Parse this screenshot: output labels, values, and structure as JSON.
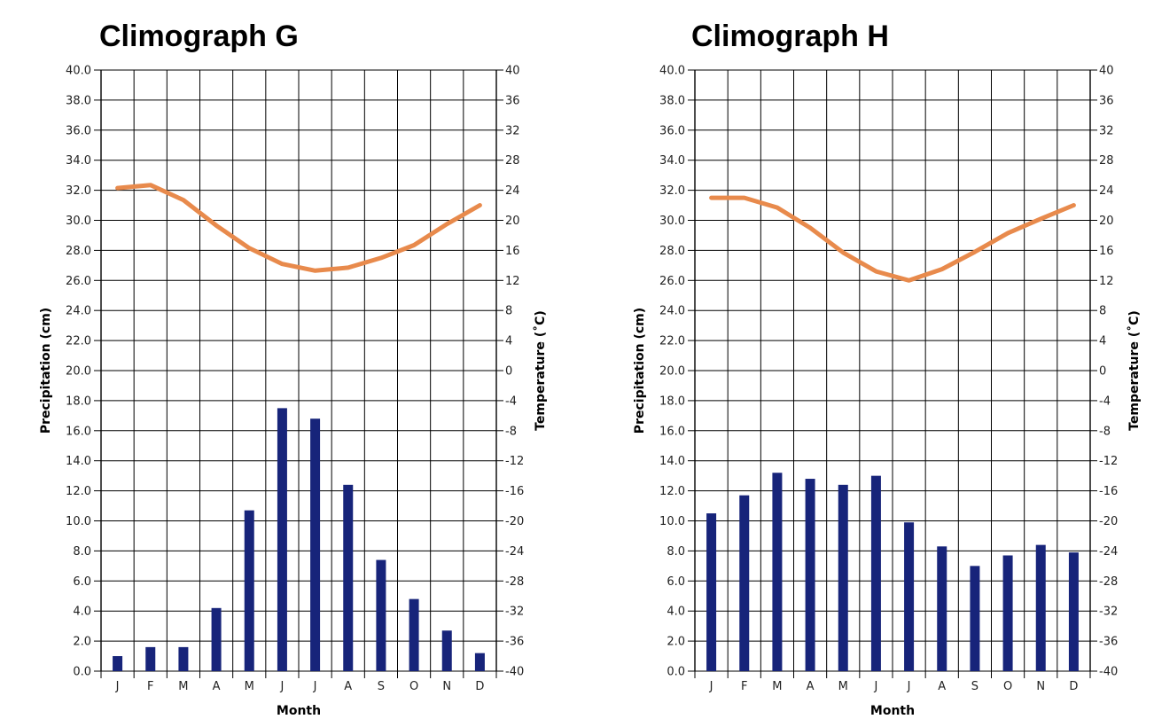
{
  "chart_data": [
    {
      "type": "bar+line",
      "title": "Climograph G",
      "xlabel": "Month",
      "ylabel_left": "Precipitation (cm)",
      "ylabel_right": "Temperature (˚C)",
      "categories": [
        "J",
        "F",
        "M",
        "A",
        "M",
        "J",
        "J",
        "A",
        "S",
        "O",
        "N",
        "D"
      ],
      "ylim_left": [
        0,
        40
      ],
      "ylim_right": [
        -40,
        40
      ],
      "left_ticks": [
        "0.0",
        "2.0",
        "4.0",
        "6.0",
        "8.0",
        "10.0",
        "12.0",
        "14.0",
        "16.0",
        "18.0",
        "20.0",
        "22.0",
        "24.0",
        "26.0",
        "28.0",
        "30.0",
        "32.0",
        "34.0",
        "36.0",
        "38.0",
        "40.0"
      ],
      "right_ticks": [
        "-40",
        "-36",
        "-32",
        "-28",
        "-24",
        "-20",
        "-16",
        "-12",
        "-8",
        "-4",
        "0",
        "4",
        "8",
        "12",
        "16",
        "20",
        "24",
        "28",
        "32",
        "36",
        "40"
      ],
      "precipitation": [
        1.0,
        1.6,
        1.6,
        4.2,
        10.7,
        17.5,
        16.8,
        12.4,
        7.4,
        4.8,
        2.7,
        1.2
      ],
      "temperature": [
        24.3,
        24.7,
        22.7,
        19.3,
        16.3,
        14.2,
        13.3,
        13.7,
        15.0,
        16.7,
        19.5,
        22.0
      ],
      "grid": true,
      "colors": {
        "bar": "#17247a",
        "line": "#e88a4c",
        "grid": "#000000"
      }
    },
    {
      "type": "bar+line",
      "title": "Climograph H",
      "xlabel": "Month",
      "ylabel_left": "Precipitation (cm)",
      "ylabel_right": "Temperature (˚C)",
      "categories": [
        "J",
        "F",
        "M",
        "A",
        "M",
        "J",
        "J",
        "A",
        "S",
        "O",
        "N",
        "D"
      ],
      "ylim_left": [
        0,
        40
      ],
      "ylim_right": [
        -40,
        40
      ],
      "left_ticks": [
        "0.0",
        "2.0",
        "4.0",
        "6.0",
        "8.0",
        "10.0",
        "12.0",
        "14.0",
        "16.0",
        "18.0",
        "20.0",
        "22.0",
        "24.0",
        "26.0",
        "28.0",
        "30.0",
        "32.0",
        "34.0",
        "36.0",
        "38.0",
        "40.0"
      ],
      "right_ticks": [
        "-40",
        "-36",
        "-32",
        "-28",
        "-24",
        "-20",
        "-16",
        "-12",
        "-8",
        "-4",
        "0",
        "4",
        "8",
        "12",
        "16",
        "20",
        "24",
        "28",
        "32",
        "36",
        "40"
      ],
      "precipitation": [
        10.5,
        11.7,
        13.2,
        12.8,
        12.4,
        13.0,
        9.9,
        8.3,
        7.0,
        7.7,
        8.4,
        7.9
      ],
      "temperature": [
        23.0,
        23.0,
        21.7,
        19.0,
        15.7,
        13.2,
        12.0,
        13.5,
        15.8,
        18.3,
        20.2,
        22.0
      ],
      "grid": true,
      "colors": {
        "bar": "#17247a",
        "line": "#e88a4c",
        "grid": "#000000"
      }
    }
  ]
}
